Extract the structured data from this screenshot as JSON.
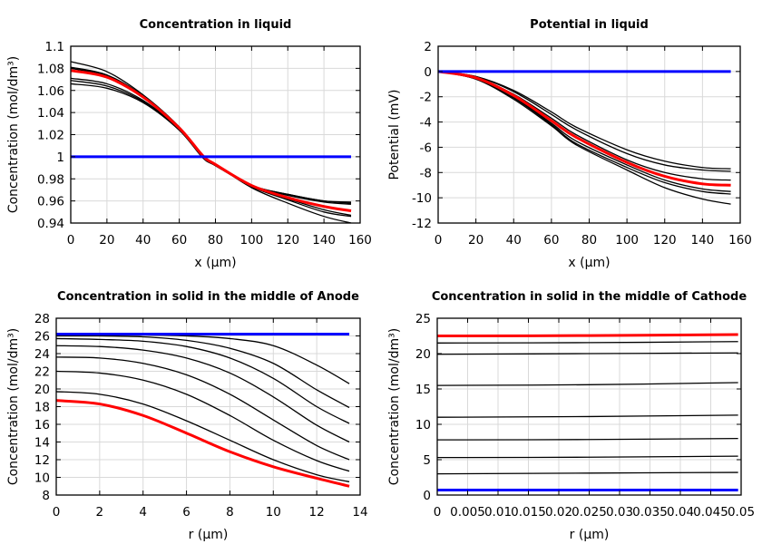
{
  "chart_data": [
    {
      "type": "line",
      "title": "Concentration in liquid",
      "xlabel": "x (µm)",
      "ylabel": "Concentration (mol/dm³)",
      "xlim": [
        0,
        160
      ],
      "ylim": [
        0.94,
        1.1
      ],
      "xticks": [
        0,
        20,
        40,
        60,
        80,
        100,
        120,
        140,
        160
      ],
      "yticks": [
        0.94,
        0.96,
        0.98,
        1,
        1.02,
        1.04,
        1.06,
        1.08,
        1.1
      ],
      "ytick_labels": [
        "0.94",
        "0.96",
        "0.98",
        "1",
        "1.02",
        "1.04",
        "1.06",
        "1.08",
        "1.1"
      ],
      "grid": true,
      "x": [
        0,
        20,
        40,
        60,
        73,
        80,
        100,
        120,
        140,
        155
      ],
      "series": [
        {
          "color": "#000000",
          "values": [
            1.086,
            1.077,
            1.056,
            1.027,
            1.001,
            0.993,
            0.972,
            0.958,
            0.946,
            0.94
          ]
        },
        {
          "color": "#000000",
          "values": [
            1.081,
            1.074,
            1.055,
            1.026,
            1.001,
            0.993,
            0.973,
            0.961,
            0.95,
            0.946
          ]
        },
        {
          "color": "#000000",
          "values": [
            1.08,
            1.073,
            1.055,
            1.026,
            1.001,
            0.993,
            0.973,
            0.962,
            0.952,
            0.947
          ]
        },
        {
          "color": "#000000",
          "values": [
            1.071,
            1.066,
            1.051,
            1.025,
            1.0,
            0.992,
            0.974,
            0.965,
            0.959,
            0.957
          ]
        },
        {
          "color": "#000000",
          "values": [
            1.069,
            1.064,
            1.05,
            1.025,
            1.0,
            0.992,
            0.974,
            0.966,
            0.96,
            0.958
          ]
        },
        {
          "color": "#000000",
          "values": [
            1.066,
            1.062,
            1.049,
            1.024,
            0.999,
            0.992,
            0.974,
            0.966,
            0.96,
            0.959
          ]
        },
        {
          "color": "#ff0000",
          "values": [
            1.078,
            1.072,
            1.054,
            1.026,
            1.001,
            0.993,
            0.974,
            0.963,
            0.955,
            0.951
          ]
        },
        {
          "color": "#0000ff",
          "values": [
            1.0,
            1.0,
            1.0,
            1.0,
            1.0,
            1.0,
            1.0,
            1.0,
            1.0,
            1.0
          ]
        }
      ]
    },
    {
      "type": "line",
      "title": "Potential in liquid",
      "xlabel": "x (µm)",
      "ylabel": "Potential (mV)",
      "xlim": [
        0,
        160
      ],
      "ylim": [
        -12,
        2
      ],
      "xticks": [
        0,
        20,
        40,
        60,
        80,
        100,
        120,
        140,
        160
      ],
      "yticks": [
        -12,
        -10,
        -8,
        -6,
        -4,
        -2,
        0,
        2
      ],
      "ytick_labels": [
        "-12",
        "-10",
        "-8",
        "-6",
        "-4",
        "-2",
        "0",
        "2"
      ],
      "grid": true,
      "x": [
        0,
        20,
        40,
        60,
        73,
        100,
        120,
        140,
        155
      ],
      "series": [
        {
          "color": "#000000",
          "values": [
            0,
            -0.4,
            -1.5,
            -3.2,
            -4.4,
            -6.2,
            -7.1,
            -7.6,
            -7.7
          ]
        },
        {
          "color": "#000000",
          "values": [
            0,
            -0.4,
            -1.6,
            -3.4,
            -4.6,
            -6.5,
            -7.4,
            -7.8,
            -7.9
          ]
        },
        {
          "color": "#000000",
          "values": [
            0,
            -0.5,
            -1.8,
            -3.7,
            -5.0,
            -7.0,
            -8.0,
            -8.5,
            -8.6
          ]
        },
        {
          "color": "#000000",
          "values": [
            0,
            -0.5,
            -2.0,
            -4.1,
            -5.5,
            -7.4,
            -8.6,
            -9.3,
            -9.5
          ]
        },
        {
          "color": "#000000",
          "values": [
            0,
            -0.6,
            -2.1,
            -4.2,
            -5.7,
            -7.6,
            -8.8,
            -9.5,
            -9.7
          ]
        },
        {
          "color": "#000000",
          "values": [
            0,
            -0.6,
            -2.2,
            -4.3,
            -5.8,
            -7.8,
            -9.2,
            -10.1,
            -10.5
          ]
        },
        {
          "color": "#ff0000",
          "values": [
            0,
            -0.5,
            -1.9,
            -3.9,
            -5.2,
            -7.2,
            -8.3,
            -8.9,
            -9.0
          ]
        },
        {
          "color": "#0000ff",
          "values": [
            0,
            0,
            0,
            0,
            0,
            0,
            0,
            0,
            0
          ]
        }
      ]
    },
    {
      "type": "line",
      "title": "Concentration in solid in the middle of Anode",
      "xlabel": "r (µm)",
      "ylabel": "Concentration (mol/dm³)",
      "xlim": [
        0,
        14
      ],
      "ylim": [
        8,
        28
      ],
      "xticks": [
        0,
        2,
        4,
        6,
        8,
        10,
        12,
        14
      ],
      "yticks": [
        8,
        10,
        12,
        14,
        16,
        18,
        20,
        22,
        24,
        26,
        28
      ],
      "ytick_labels": [
        "8",
        "10",
        "12",
        "14",
        "16",
        "18",
        "20",
        "22",
        "24",
        "26",
        "28"
      ],
      "grid": true,
      "x": [
        0,
        2,
        4,
        6,
        8,
        10,
        12,
        13.5
      ],
      "series": [
        {
          "color": "#000000",
          "values": [
            26.1,
            26.1,
            26.1,
            26.0,
            25.7,
            24.9,
            22.7,
            20.6
          ]
        },
        {
          "color": "#000000",
          "values": [
            26.0,
            26.0,
            25.9,
            25.5,
            24.6,
            22.9,
            19.9,
            17.9
          ]
        },
        {
          "color": "#000000",
          "values": [
            25.7,
            25.6,
            25.4,
            24.8,
            23.5,
            21.2,
            18.0,
            16.1
          ]
        },
        {
          "color": "#000000",
          "values": [
            24.9,
            24.8,
            24.4,
            23.5,
            21.8,
            19.1,
            15.9,
            14.0
          ]
        },
        {
          "color": "#000000",
          "values": [
            23.6,
            23.5,
            22.9,
            21.6,
            19.4,
            16.5,
            13.6,
            12.0
          ]
        },
        {
          "color": "#000000",
          "values": [
            22.0,
            21.8,
            21.0,
            19.4,
            17.0,
            14.2,
            11.9,
            10.7
          ]
        },
        {
          "color": "#000000",
          "values": [
            19.7,
            19.4,
            18.3,
            16.4,
            14.2,
            12.0,
            10.3,
            9.5
          ]
        },
        {
          "color": "#ff0000",
          "values": [
            18.7,
            18.3,
            17.0,
            15.0,
            12.9,
            11.2,
            9.9,
            9.0
          ]
        },
        {
          "color": "#0000ff",
          "values": [
            26.2,
            26.2,
            26.2,
            26.2,
            26.2,
            26.2,
            26.2,
            26.2
          ]
        }
      ]
    },
    {
      "type": "line",
      "title": "Concentration in solid in the middle of Cathode",
      "xlabel": "r (µm)",
      "ylabel": "Concentration (mol/dm³)",
      "xlim": [
        0,
        0.05
      ],
      "ylim": [
        0,
        25
      ],
      "xticks": [
        0,
        0.005,
        0.01,
        0.015,
        0.02,
        0.025,
        0.03,
        0.035,
        0.04,
        0.045,
        0.05
      ],
      "xtick_labels": [
        "0",
        "0.005",
        "0.01",
        "0.015",
        "0.02",
        "0.025",
        "0.03",
        "0.035",
        "0.04",
        "0.045",
        "0.05"
      ],
      "yticks": [
        0,
        5,
        10,
        15,
        20,
        25
      ],
      "ytick_labels": [
        "0",
        "5",
        "10",
        "15",
        "20",
        "25"
      ],
      "grid": true,
      "x": [
        0,
        0.025,
        0.0495
      ],
      "series": [
        {
          "color": "#000000",
          "values": [
            21.5,
            21.55,
            21.7
          ]
        },
        {
          "color": "#000000",
          "values": [
            19.9,
            20.0,
            20.1
          ]
        },
        {
          "color": "#000000",
          "values": [
            15.5,
            15.6,
            15.9
          ]
        },
        {
          "color": "#000000",
          "values": [
            11.0,
            11.1,
            11.3
          ]
        },
        {
          "color": "#000000",
          "values": [
            7.8,
            7.85,
            8.0
          ]
        },
        {
          "color": "#000000",
          "values": [
            5.3,
            5.35,
            5.5
          ]
        },
        {
          "color": "#000000",
          "values": [
            3.0,
            3.1,
            3.2
          ]
        },
        {
          "color": "#ff0000",
          "values": [
            22.5,
            22.55,
            22.7
          ]
        },
        {
          "color": "#0000ff",
          "values": [
            0.7,
            0.7,
            0.7
          ]
        }
      ]
    }
  ]
}
